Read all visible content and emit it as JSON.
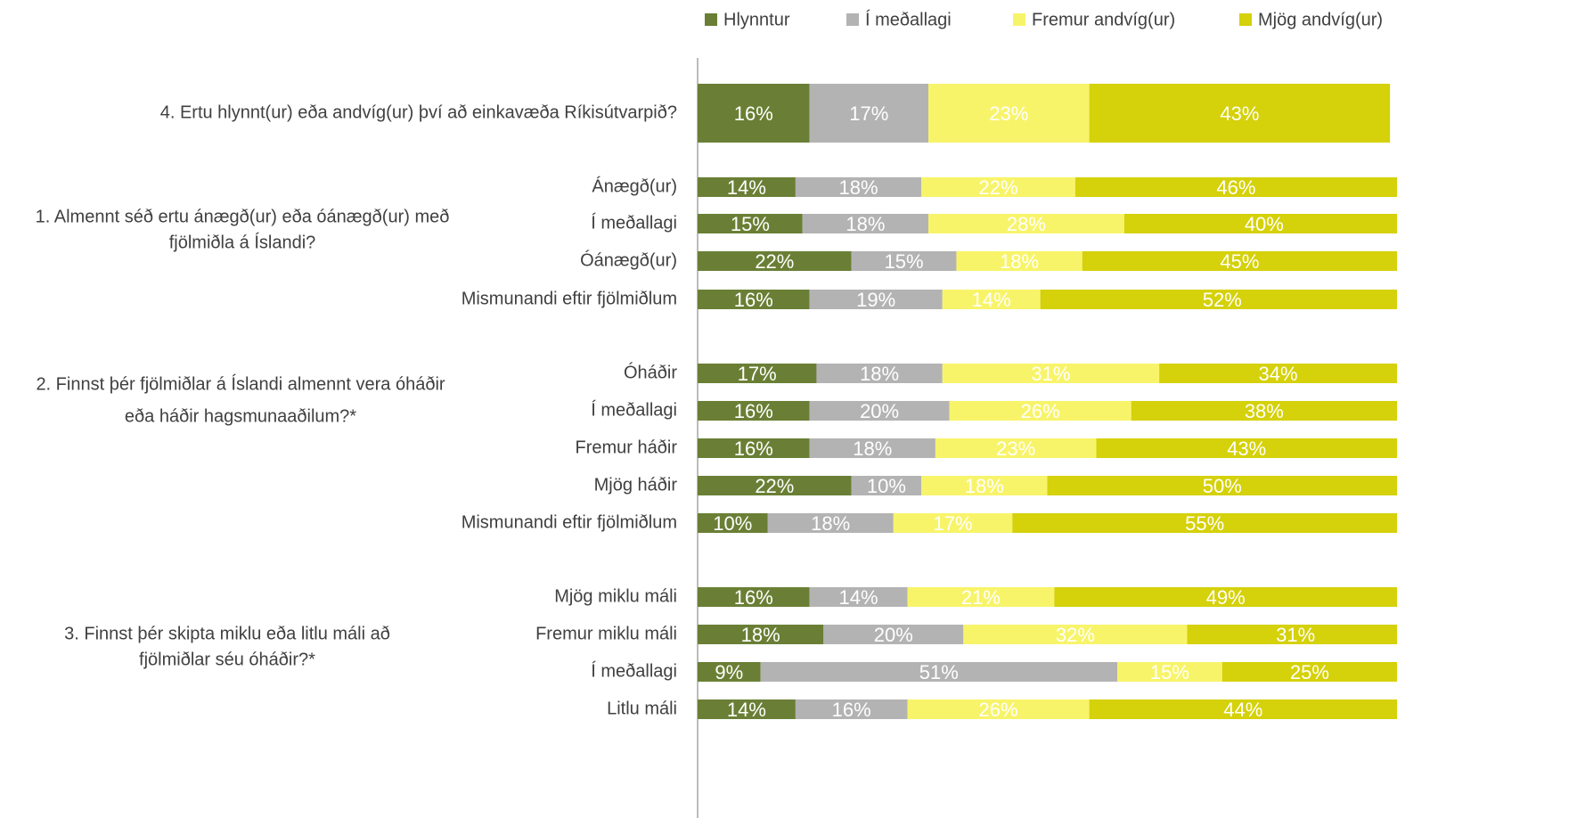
{
  "chart_data": {
    "type": "bar",
    "orientation": "horizontal",
    "stacked": true,
    "categories": [
      "4. Ertu hlynnt(ur) eða andvíg(ur) því að einkavæða Ríkisútvarpið?",
      "Ánægð(ur)",
      "Í meðallagi",
      "Óánægð(ur)",
      "Mismunandi eftir fjölmiðlum",
      "Óháðir",
      "Í meðallagi",
      "Fremur háðir",
      "Mjög háðir",
      "Mismunandi eftir fjölmiðlum",
      "Mjög miklu máli",
      "Fremur miklu máli",
      "Í meðallagi",
      "Litlu máli"
    ],
    "groups": [
      {
        "lines": [
          "1. Almennt séð ertu ánægð(ur) eða óánægð(ur) með",
          "fjölmiðla á Íslandi?"
        ]
      },
      {
        "lines": [
          "2. Finnst þér fjölmiðlar á Íslandi almennt vera óháðir",
          "eða háðir hagsmunaaðilum?*"
        ]
      },
      {
        "lines": [
          "3. Finnst þér skipta miklu eða litlu máli að",
          "fjölmiðlar séu óháðir?*"
        ]
      }
    ],
    "series": [
      {
        "name": "Hlynntur",
        "color": "#6a7f35",
        "values": [
          16,
          14,
          15,
          22,
          16,
          17,
          16,
          16,
          22,
          10,
          16,
          18,
          9,
          14
        ],
        "value_labels": [
          "16%",
          "14%",
          "15%",
          "22%",
          "16%",
          "17%",
          "16%",
          "16%",
          "22%",
          "10%",
          "16%",
          "18%",
          "9%",
          "14%"
        ]
      },
      {
        "name": "Í meðallagi",
        "color": "#b3b3b3",
        "values": [
          17,
          18,
          18,
          15,
          19,
          18,
          20,
          18,
          10,
          18,
          14,
          20,
          51,
          16
        ],
        "value_labels": [
          "17%",
          "18%",
          "18%",
          "15%",
          "19%",
          "18%",
          "20%",
          "18%",
          "10%",
          "18%",
          "14%",
          "20%",
          "51%",
          "16%"
        ]
      },
      {
        "name": "Fremur andvíg(ur)",
        "color": "#f8f46a",
        "values": [
          23,
          22,
          28,
          18,
          14,
          31,
          26,
          23,
          18,
          17,
          21,
          32,
          15,
          26
        ],
        "value_labels": [
          "23%",
          "22%",
          "28%",
          "18%",
          "14%",
          "31%",
          "26%",
          "23%",
          "18%",
          "17%",
          "21%",
          "32%",
          "15%",
          "26%"
        ]
      },
      {
        "name": "Mjög andvíg(ur)",
        "color": "#d5d10a",
        "values": [
          43,
          46,
          40,
          45,
          52,
          34,
          38,
          43,
          50,
          55,
          49,
          31,
          25,
          44
        ],
        "value_labels": [
          "43%",
          "46%",
          "40%",
          "45%",
          "52%",
          "34%",
          "38%",
          "43%",
          "50%",
          "55%",
          "49%",
          "31%",
          "25%",
          "44%"
        ]
      }
    ],
    "xlim": [
      0,
      100
    ],
    "legend": "top-right"
  }
}
